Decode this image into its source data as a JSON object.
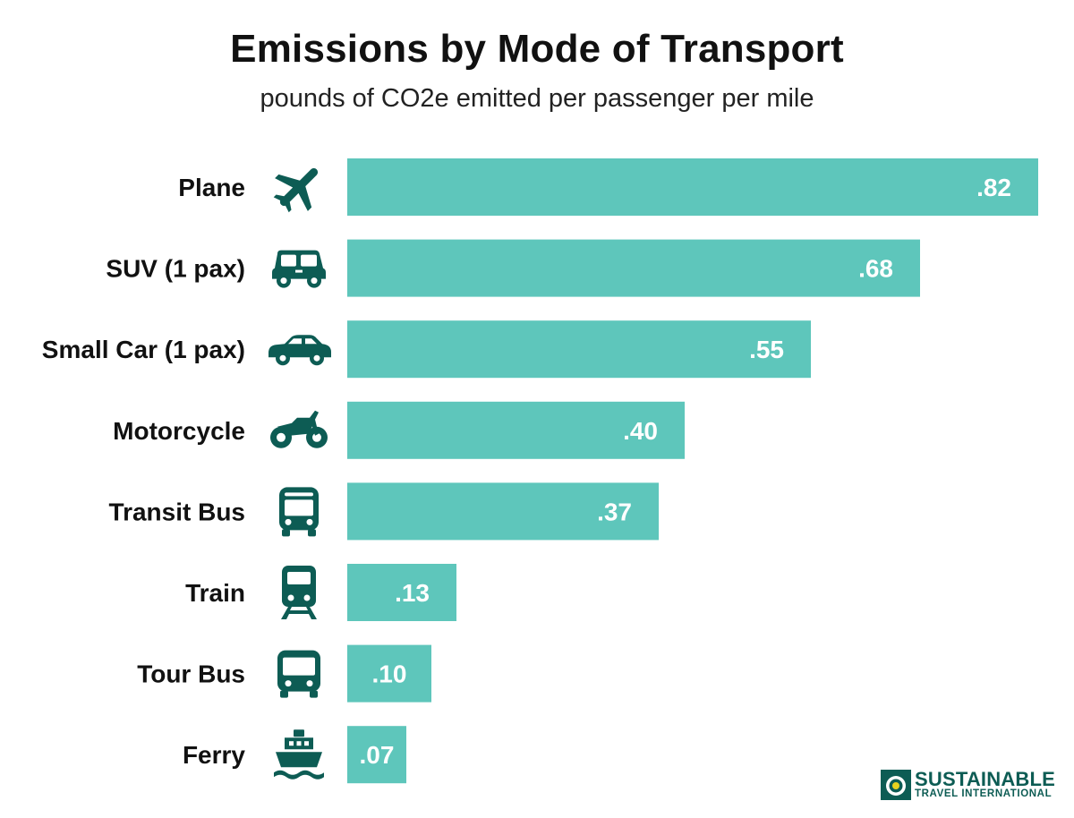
{
  "chart_data": {
    "type": "bar",
    "orientation": "horizontal",
    "title": "Emissions by Mode of Transport",
    "subtitle": "pounds of CO2e emitted per passenger per mile",
    "categories": [
      "Plane",
      "SUV (1 pax)",
      "Small Car (1 pax)",
      "Motorcycle",
      "Transit Bus",
      "Train",
      "Tour Bus",
      "Ferry"
    ],
    "values": [
      0.82,
      0.68,
      0.55,
      0.4,
      0.37,
      0.13,
      0.1,
      0.07
    ],
    "value_labels": [
      ".82",
      ".68",
      ".55",
      ".40",
      ".37",
      ".13",
      ".10",
      ".07"
    ],
    "icons": [
      "plane-icon",
      "suv-icon",
      "small-car-icon",
      "motorcycle-icon",
      "transit-bus-icon",
      "train-icon",
      "tour-bus-icon",
      "ferry-icon"
    ],
    "xlim": [
      0,
      0.82
    ],
    "grid": false,
    "legend": "none"
  },
  "colors": {
    "bar": "#5ec6bb",
    "icon": "#0d5c54",
    "value_label": "#ffffff",
    "category_label": "#111111"
  },
  "logo": {
    "line1": "SUSTAINABLE",
    "line2": "TRAVEL INTERNATIONAL"
  }
}
